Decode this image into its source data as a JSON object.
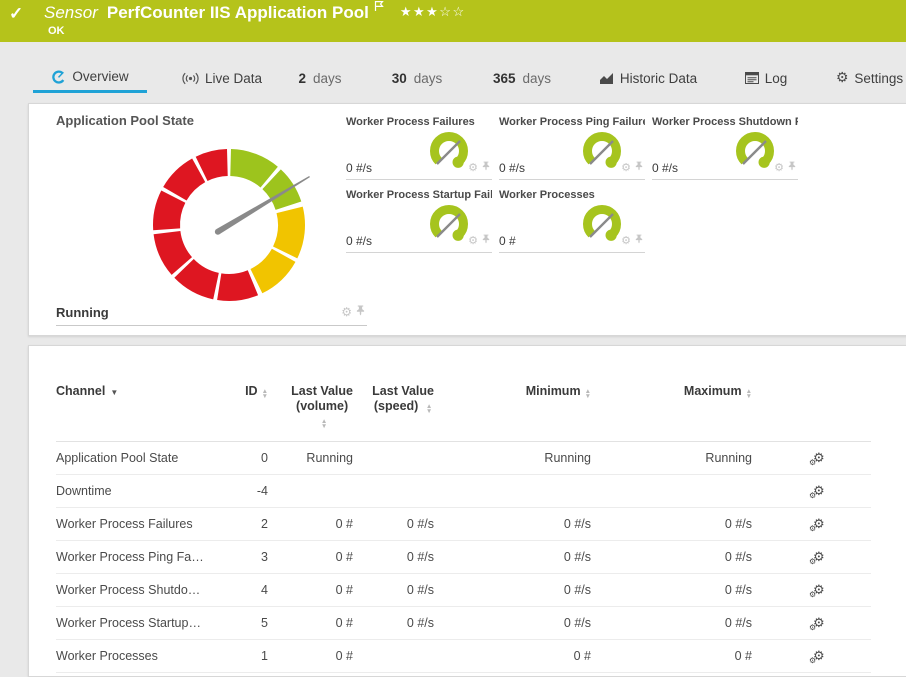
{
  "banner": {
    "type_label": "Sensor",
    "title": "PerfCounter IIS Application Pool",
    "status": "OK",
    "stars": "★★★☆☆",
    "bg_color": "#b5c31b"
  },
  "tabs": [
    {
      "label": "Overview",
      "icon": "gauge",
      "active": true
    },
    {
      "label": "Live Data",
      "icon": "broadcast"
    },
    {
      "num": "2",
      "unit": "days"
    },
    {
      "num": "30",
      "unit": "days"
    },
    {
      "num": "365",
      "unit": "days"
    },
    {
      "label": "Historic Data",
      "icon": "chart"
    },
    {
      "label": "Log",
      "icon": "log"
    },
    {
      "label": "Settings",
      "icon": "gear"
    }
  ],
  "overview": {
    "main_gauge": {
      "title": "Application Pool State",
      "value": "Running",
      "needle_angle_deg": 59,
      "colors": {
        "green": "#9dc41d",
        "yellow": "#f1c400",
        "red": "#de1621"
      },
      "segments": [
        {
          "from": 1.5,
          "to": 40,
          "color": "green"
        },
        {
          "from": 43,
          "to": 72,
          "color": "green"
        },
        {
          "from": 76,
          "to": 116,
          "color": "yellow"
        },
        {
          "from": 119,
          "to": 154,
          "color": "yellow"
        },
        {
          "from": 157.5,
          "to": 189,
          "color": "red"
        },
        {
          "from": 192,
          "to": 226,
          "color": "red"
        },
        {
          "from": 229,
          "to": 263,
          "color": "red"
        },
        {
          "from": 266,
          "to": 297,
          "color": "red"
        },
        {
          "from": 300,
          "to": 331,
          "color": "red"
        },
        {
          "from": 334,
          "to": 358.5,
          "color": "red"
        }
      ]
    },
    "small_gauges": [
      {
        "title": "Worker Process Failures",
        "value": "0 #/s"
      },
      {
        "title": "Worker Process Ping Failures",
        "value": "0 #/s"
      },
      {
        "title": "Worker Process Shutdown Fa…",
        "value": "0 #/s"
      },
      {
        "title": "Worker Process Startup Failu…",
        "value": "0 #/s"
      },
      {
        "title": "Worker Processes",
        "value": "0 #"
      }
    ],
    "gauge_arc_color": "#a6c41e",
    "needle_color": "#8a8a8a"
  },
  "table": {
    "columns": [
      {
        "label": "Channel",
        "sorted": true
      },
      {
        "label": "ID",
        "sortable": true
      },
      {
        "label": "Last Value",
        "label2": "(volume)",
        "sortable": true,
        "arrows_below": true
      },
      {
        "label": "Last Value",
        "label2": "(speed)",
        "sortable": true
      },
      {
        "label": "Minimum",
        "sortable": true
      },
      {
        "label": "Maximum",
        "sortable": true
      },
      {
        "label": ""
      }
    ],
    "rows": [
      {
        "channel": "Application Pool State",
        "id": "0",
        "last_value_volume": "Running",
        "last_value_speed": "",
        "minimum": "Running",
        "maximum": "Running"
      },
      {
        "channel": "Downtime",
        "id": "-4",
        "last_value_volume": "",
        "last_value_speed": "",
        "minimum": "",
        "maximum": ""
      },
      {
        "channel": "Worker Process Failures",
        "id": "2",
        "last_value_volume": "0 #",
        "last_value_speed": "0 #/s",
        "minimum": "0 #/s",
        "maximum": "0 #/s"
      },
      {
        "channel": "Worker Process Ping Fa…",
        "id": "3",
        "last_value_volume": "0 #",
        "last_value_speed": "0 #/s",
        "minimum": "0 #/s",
        "maximum": "0 #/s"
      },
      {
        "channel": "Worker Process Shutdo…",
        "id": "4",
        "last_value_volume": "0 #",
        "last_value_speed": "0 #/s",
        "minimum": "0 #/s",
        "maximum": "0 #/s"
      },
      {
        "channel": "Worker Process Startup…",
        "id": "5",
        "last_value_volume": "0 #",
        "last_value_speed": "0 #/s",
        "minimum": "0 #/s",
        "maximum": "0 #/s"
      },
      {
        "channel": "Worker Processes",
        "id": "1",
        "last_value_volume": "0 #",
        "last_value_speed": "",
        "minimum": "0 #",
        "maximum": "0 #"
      }
    ]
  }
}
